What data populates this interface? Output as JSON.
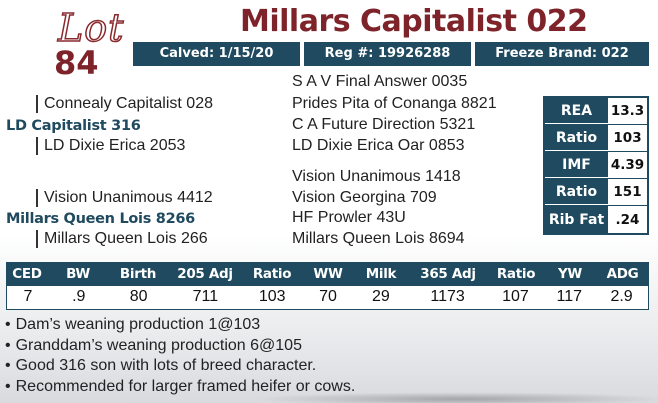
{
  "header": {
    "lot_word": "Lot",
    "lot_number": "84",
    "name": "Millars Capitalist 022",
    "calved": "Calved: 1/15/20",
    "reg": "Reg #: 19926288",
    "freeze_brand": "Freeze Brand: 022"
  },
  "pedigree": {
    "sire_sire_sire": "S A V Final Answer 0035",
    "sire_sire": "Connealy Capitalist 028",
    "sire_sire_dam": "Prides Pita of Conanga 8821",
    "sire": "LD Capitalist 316",
    "sire_dam_sire": "C A Future Direction 5321",
    "sire_dam": "LD Dixie Erica 2053",
    "sire_dam_dam": "LD Dixie Erica Oar 0853",
    "dam_sire_sire": "Vision Unanimous 1418",
    "dam_sire": "Vision Unanimous 4412",
    "dam_sire_dam": "Vision Georgina 709",
    "dam": "Millars Queen Lois 8266",
    "dam_dam_sire": "HF Prowler 43U",
    "dam_dam": "Millars Queen Lois 266",
    "dam_dam_dam": "Millars Queen Lois 8694"
  },
  "carcass": [
    {
      "label": "REA",
      "value": "13.3"
    },
    {
      "label": "Ratio",
      "value": "103"
    },
    {
      "label": "IMF",
      "value": "4.39"
    },
    {
      "label": "Ratio",
      "value": "151"
    },
    {
      "label": "Rib Fat",
      "value": ".24"
    }
  ],
  "epd": {
    "headers": [
      "CED",
      "BW",
      "Birth",
      "205 Adj",
      "Ratio",
      "WW",
      "Milk",
      "365 Adj",
      "Ratio",
      "YW",
      "ADG"
    ],
    "values": [
      "7",
      ".9",
      "80",
      "711",
      "103",
      "70",
      "29",
      "1173",
      "107",
      "117",
      "2.9"
    ]
  },
  "notes": [
    "Dam’s weaning production 1@103",
    "Granddam’s weaning production 6@105",
    "Good 316 son with lots of breed character.",
    "Recommended for larger framed heifer or cows."
  ],
  "colors": {
    "maroon": "#7d2329",
    "navy": "#1f4a5f"
  }
}
